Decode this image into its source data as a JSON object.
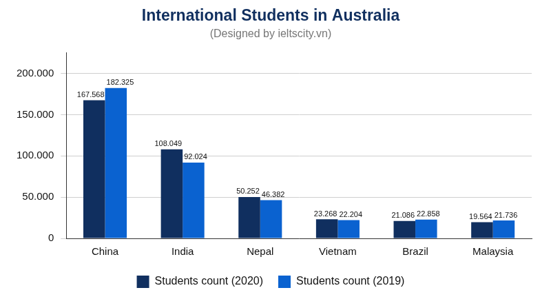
{
  "chart_data": {
    "type": "bar",
    "title": "International Students in Australia",
    "subtitle": "(Designed by ieltscity.vn)",
    "categories": [
      "China",
      "India",
      "Nepal",
      "Vietnam",
      "Brazil",
      "Malaysia"
    ],
    "series": [
      {
        "name": "Students count (2020)",
        "color": "#102f5f",
        "values": [
          167568,
          108049,
          50252,
          23268,
          21086,
          19564
        ],
        "value_labels": [
          "167.568",
          "108.049",
          "50.252",
          "23.268",
          "21.086",
          "19.564"
        ]
      },
      {
        "name": "Students count (2019)",
        "color": "#0a62d0",
        "values": [
          182325,
          92024,
          46382,
          22204,
          22858,
          21736
        ],
        "value_labels": [
          "182.325",
          "92.024",
          "46.382",
          "22.204",
          "22.858",
          "21.736"
        ]
      }
    ],
    "ylim": [
      0,
      225000
    ],
    "yticks": [
      0,
      {
        "value": 50000,
        "label": "50.000"
      },
      {
        "value": 100000,
        "label": "100.000"
      },
      {
        "value": 150000,
        "label": "150.000"
      },
      {
        "value": 200000,
        "label": "200.000"
      }
    ],
    "grid": true,
    "legend": "bottom",
    "data_labels": true
  }
}
